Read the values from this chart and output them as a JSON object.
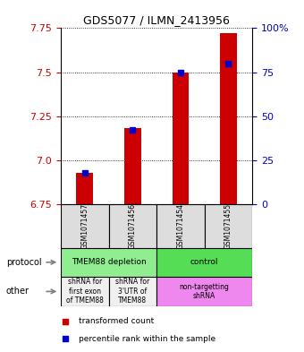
{
  "title": "GDS5077 / ILMN_2413956",
  "samples": [
    "GSM1071457",
    "GSM1071456",
    "GSM1071454",
    "GSM1071455"
  ],
  "bar_values": [
    6.93,
    7.18,
    7.5,
    7.72
  ],
  "bar_base": 6.75,
  "percentile_values": [
    18,
    42,
    75,
    80
  ],
  "ylim": [
    6.75,
    7.75
  ],
  "yticks_left": [
    6.75,
    7.0,
    7.25,
    7.5,
    7.75
  ],
  "yticks_right": [
    0,
    25,
    50,
    75,
    100
  ],
  "bar_color": "#cc0000",
  "dot_color": "#0000cc",
  "protocol_row": [
    {
      "label": "TMEM88 depletion",
      "span": [
        0,
        2
      ],
      "color": "#90ee90"
    },
    {
      "label": "control",
      "span": [
        2,
        4
      ],
      "color": "#55dd55"
    }
  ],
  "other_row": [
    {
      "label": "shRNA for\nfirst exon\nof TMEM88",
      "span": [
        0,
        1
      ],
      "color": "#f0f0f0"
    },
    {
      "label": "shRNA for\n3'UTR of\nTMEM88",
      "span": [
        1,
        2
      ],
      "color": "#f0f0f0"
    },
    {
      "label": "non-targetting\nshRNA",
      "span": [
        2,
        4
      ],
      "color": "#ee88ee"
    }
  ],
  "legend_bar_label": "transformed count",
  "legend_dot_label": "percentile rank within the sample",
  "row_labels": [
    "protocol",
    "other"
  ],
  "background_color": "#ffffff"
}
